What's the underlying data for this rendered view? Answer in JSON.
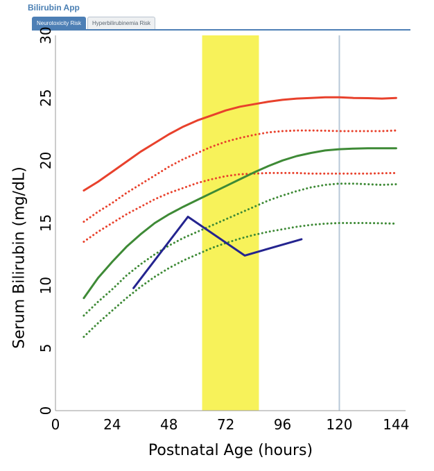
{
  "app": {
    "title": "Bilirubin App",
    "tabs": [
      {
        "label": "Neurotoxicity Risk",
        "active": true
      },
      {
        "label": "Hyperbilirubinemia Risk",
        "active": false
      }
    ]
  },
  "chart_data": {
    "type": "line",
    "title": "",
    "xlabel": "Postnatal Age (hours)",
    "ylabel": "Serum Bilirubin (mg/dL)",
    "xlim": [
      0,
      148
    ],
    "ylim": [
      0,
      30
    ],
    "xticks": [
      0,
      24,
      48,
      72,
      96,
      120,
      144
    ],
    "yticks": [
      0,
      5,
      10,
      15,
      20,
      25,
      30
    ],
    "grid": false,
    "legend": "none",
    "highlight_band": {
      "x_start": 62,
      "x_end": 86,
      "color": "#f7f25a"
    },
    "vertical_line": {
      "x": 120,
      "color": "#b8c8d8"
    },
    "series": [
      {
        "style": "solid",
        "color": "#e8412c",
        "points": [
          [
            12,
            17.6
          ],
          [
            18,
            18.3
          ],
          [
            24,
            19.1
          ],
          [
            30,
            19.9
          ],
          [
            36,
            20.7
          ],
          [
            42,
            21.4
          ],
          [
            48,
            22.1
          ],
          [
            54,
            22.7
          ],
          [
            60,
            23.2
          ],
          [
            66,
            23.6
          ],
          [
            72,
            24.0
          ],
          [
            78,
            24.3
          ],
          [
            84,
            24.5
          ],
          [
            90,
            24.7
          ],
          [
            96,
            24.85
          ],
          [
            102,
            24.95
          ],
          [
            108,
            25.0
          ],
          [
            114,
            25.05
          ],
          [
            120,
            25.05
          ],
          [
            126,
            25.0
          ],
          [
            132,
            24.98
          ],
          [
            138,
            24.95
          ],
          [
            144,
            25.0
          ]
        ]
      },
      {
        "style": "dotted",
        "color": "#e8412c",
        "points": [
          [
            12,
            15.1
          ],
          [
            18,
            15.9
          ],
          [
            24,
            16.6
          ],
          [
            30,
            17.4
          ],
          [
            36,
            18.1
          ],
          [
            42,
            18.8
          ],
          [
            48,
            19.5
          ],
          [
            54,
            20.1
          ],
          [
            60,
            20.6
          ],
          [
            66,
            21.1
          ],
          [
            72,
            21.5
          ],
          [
            78,
            21.8
          ],
          [
            84,
            22.05
          ],
          [
            90,
            22.25
          ],
          [
            96,
            22.35
          ],
          [
            102,
            22.4
          ],
          [
            108,
            22.4
          ],
          [
            114,
            22.38
          ],
          [
            120,
            22.35
          ],
          [
            126,
            22.35
          ],
          [
            132,
            22.35
          ],
          [
            138,
            22.35
          ],
          [
            144,
            22.4
          ]
        ]
      },
      {
        "style": "dotted",
        "color": "#e8412c",
        "points": [
          [
            12,
            13.5
          ],
          [
            18,
            14.3
          ],
          [
            24,
            15.0
          ],
          [
            30,
            15.7
          ],
          [
            36,
            16.3
          ],
          [
            42,
            16.9
          ],
          [
            48,
            17.4
          ],
          [
            54,
            17.8
          ],
          [
            60,
            18.2
          ],
          [
            66,
            18.5
          ],
          [
            72,
            18.75
          ],
          [
            78,
            18.9
          ],
          [
            84,
            18.95
          ],
          [
            90,
            19.0
          ],
          [
            96,
            19.0
          ],
          [
            102,
            19.0
          ],
          [
            108,
            18.95
          ],
          [
            114,
            18.95
          ],
          [
            120,
            18.95
          ],
          [
            126,
            18.95
          ],
          [
            132,
            18.95
          ],
          [
            138,
            18.98
          ],
          [
            144,
            19.0
          ]
        ]
      },
      {
        "style": "solid",
        "color": "#3e8a36",
        "points": [
          [
            12,
            9.0
          ],
          [
            18,
            10.6
          ],
          [
            24,
            11.9
          ],
          [
            30,
            13.1
          ],
          [
            36,
            14.1
          ],
          [
            42,
            15.0
          ],
          [
            48,
            15.7
          ],
          [
            54,
            16.3
          ],
          [
            60,
            16.85
          ],
          [
            66,
            17.4
          ],
          [
            72,
            17.95
          ],
          [
            78,
            18.5
          ],
          [
            84,
            19.05
          ],
          [
            90,
            19.55
          ],
          [
            96,
            20.0
          ],
          [
            102,
            20.35
          ],
          [
            108,
            20.6
          ],
          [
            114,
            20.8
          ],
          [
            120,
            20.9
          ],
          [
            126,
            20.95
          ],
          [
            132,
            20.97
          ],
          [
            138,
            20.97
          ],
          [
            144,
            20.97
          ]
        ]
      },
      {
        "style": "dotted",
        "color": "#3e8a36",
        "points": [
          [
            12,
            7.6
          ],
          [
            18,
            8.7
          ],
          [
            24,
            9.7
          ],
          [
            30,
            10.8
          ],
          [
            36,
            11.7
          ],
          [
            42,
            12.5
          ],
          [
            48,
            13.2
          ],
          [
            54,
            13.8
          ],
          [
            60,
            14.3
          ],
          [
            66,
            14.8
          ],
          [
            72,
            15.3
          ],
          [
            78,
            15.8
          ],
          [
            84,
            16.3
          ],
          [
            90,
            16.8
          ],
          [
            96,
            17.2
          ],
          [
            102,
            17.55
          ],
          [
            108,
            17.85
          ],
          [
            114,
            18.05
          ],
          [
            120,
            18.15
          ],
          [
            126,
            18.15
          ],
          [
            132,
            18.1
          ],
          [
            138,
            18.05
          ],
          [
            144,
            18.1
          ]
        ]
      },
      {
        "style": "dotted",
        "color": "#3e8a36",
        "points": [
          [
            12,
            5.9
          ],
          [
            18,
            7.0
          ],
          [
            24,
            8.0
          ],
          [
            30,
            9.0
          ],
          [
            36,
            9.9
          ],
          [
            42,
            10.7
          ],
          [
            48,
            11.4
          ],
          [
            54,
            12.0
          ],
          [
            60,
            12.5
          ],
          [
            66,
            13.0
          ],
          [
            72,
            13.4
          ],
          [
            78,
            13.75
          ],
          [
            84,
            14.05
          ],
          [
            90,
            14.3
          ],
          [
            96,
            14.5
          ],
          [
            102,
            14.7
          ],
          [
            108,
            14.85
          ],
          [
            114,
            14.95
          ],
          [
            120,
            15.0
          ],
          [
            126,
            15.0
          ],
          [
            132,
            15.0
          ],
          [
            138,
            14.98
          ],
          [
            144,
            14.95
          ]
        ]
      },
      {
        "style": "solid",
        "color": "#24248f",
        "points": [
          [
            33,
            9.8
          ],
          [
            56,
            15.5
          ],
          [
            80,
            12.4
          ],
          [
            104,
            13.7
          ]
        ]
      }
    ]
  }
}
